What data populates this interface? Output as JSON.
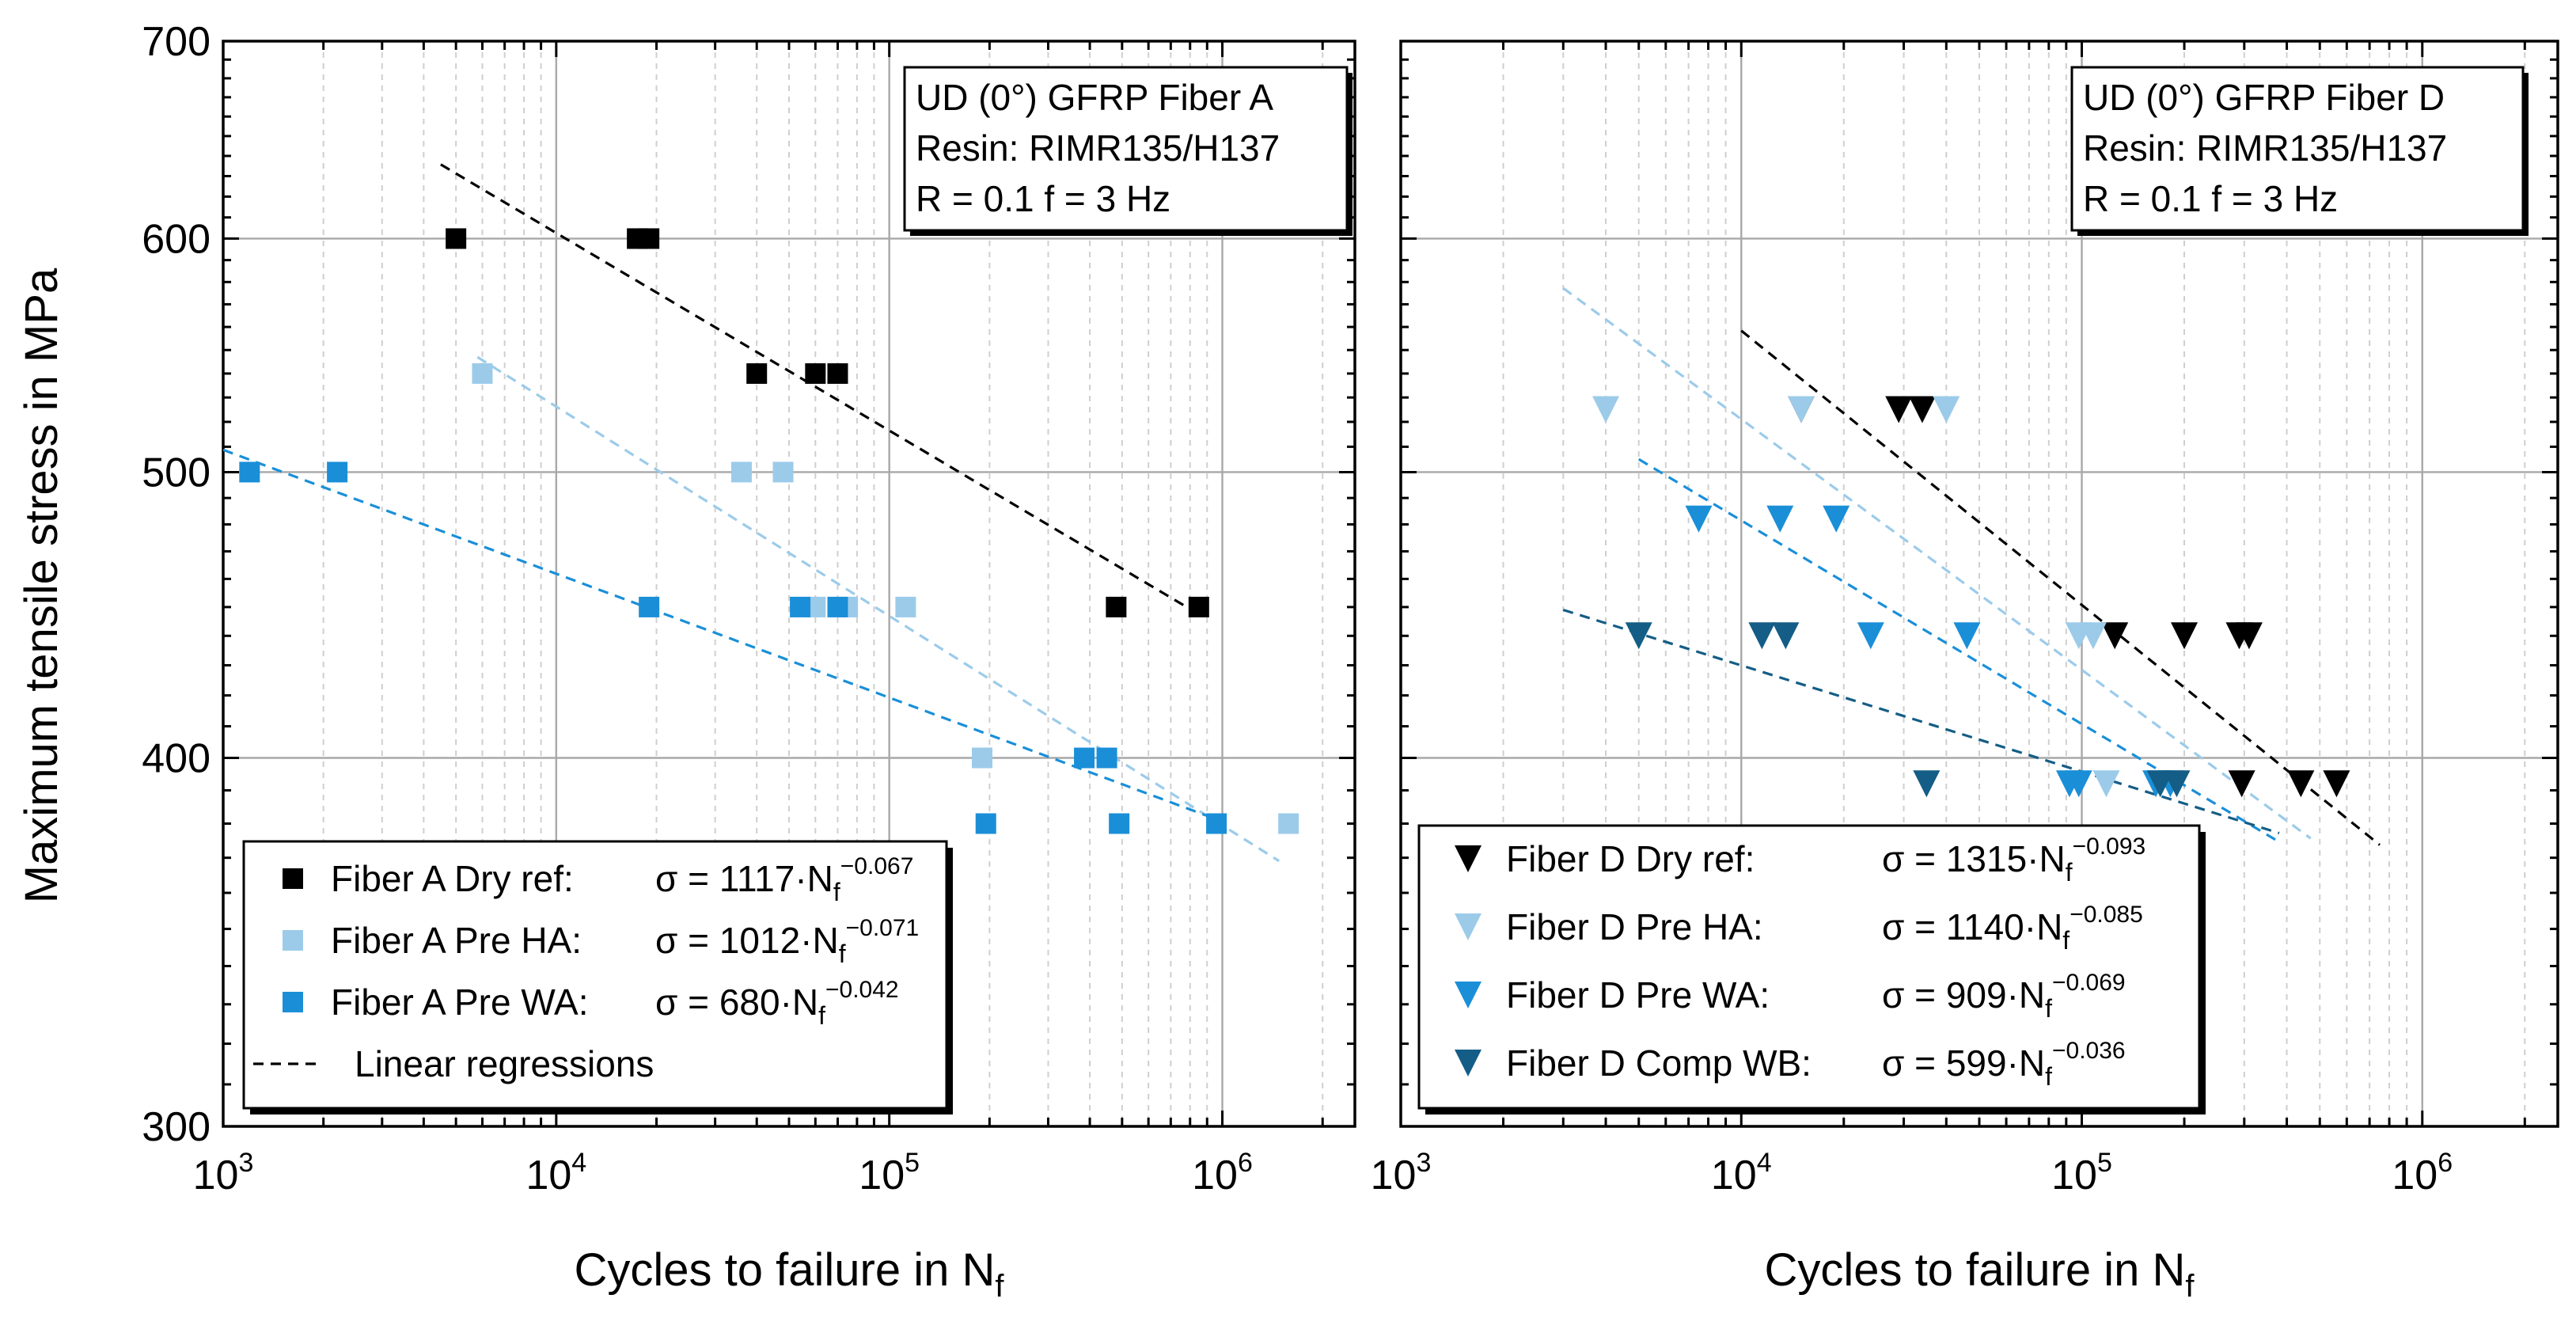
{
  "chart_data": {
    "type": "scatter",
    "shared_ylabel": "Maximum tensile stress in MPa",
    "panels": [
      {
        "xlabel": "Cycles to failure in N",
        "xlabel_sub": "f",
        "xscale": "log",
        "yscale": "log",
        "xlim": [
          1000,
          2500000
        ],
        "ylim": [
          300,
          700
        ],
        "xticks": [
          {
            "base": "10",
            "exp": "3",
            "value": 1000
          },
          {
            "base": "10",
            "exp": "4",
            "value": 10000
          },
          {
            "base": "10",
            "exp": "5",
            "value": 100000
          },
          {
            "base": "10",
            "exp": "6",
            "value": 1000000
          }
        ],
        "yticks": [
          {
            "label": "300",
            "value": 300
          },
          {
            "label": "400",
            "value": 400
          },
          {
            "label": "500",
            "value": 500
          },
          {
            "label": "600",
            "value": 600
          },
          {
            "label": "700",
            "value": 700
          }
        ],
        "grid": true,
        "legend_position": "bottom-left",
        "annotation": [
          "UD (0°) GFRP Fiber A",
          "Resin: RIMR135/H137",
          "R = 0.1    f = 3 Hz"
        ],
        "series": [
          {
            "name": "Fiber A Dry ref:",
            "marker": "square",
            "color": "#000000",
            "equation": {
              "lhs": "σ = ",
              "coef": "1117",
              "exp": "−0.067"
            },
            "points": [
              [
                5000,
                600
              ],
              [
                17500,
                600
              ],
              [
                19000,
                600
              ],
              [
                40000,
                540
              ],
              [
                60000,
                540
              ],
              [
                70000,
                540
              ],
              [
                480000,
                450
              ],
              [
                850000,
                450
              ]
            ],
            "fit": {
              "a": 1117,
              "b": -0.067,
              "x_range": [
                4500,
                850000
              ]
            }
          },
          {
            "name": "Fiber A Pre HA:",
            "marker": "square",
            "color": "#9ccbea",
            "equation": {
              "lhs": "σ = ",
              "coef": "1012",
              "exp": "−0.071"
            },
            "points": [
              [
                6000,
                540
              ],
              [
                36000,
                500
              ],
              [
                48000,
                500
              ],
              [
                60000,
                450
              ],
              [
                75000,
                450
              ],
              [
                112000,
                450
              ],
              [
                190000,
                400
              ],
              [
                1580000,
                380
              ]
            ],
            "fit": {
              "a": 1012,
              "b": -0.071,
              "x_range": [
                5800,
                1480000
              ]
            }
          },
          {
            "name": "Fiber A Pre WA:",
            "marker": "square",
            "color": "#1a8fd8",
            "equation": {
              "lhs": "σ =   ",
              "coef": "680",
              "exp": "−0.042"
            },
            "points": [
              [
                1200,
                500
              ],
              [
                2200,
                500
              ],
              [
                19000,
                450
              ],
              [
                54000,
                450
              ],
              [
                70000,
                450
              ],
              [
                195000,
                380
              ],
              [
                385000,
                400
              ],
              [
                450000,
                400
              ],
              [
                490000,
                380
              ],
              [
                960000,
                380
              ]
            ],
            "fit": {
              "a": 680,
              "b": -0.042,
              "x_range": [
                1000,
                990000
              ]
            }
          }
        ],
        "regression_legend": "Linear regressions"
      },
      {
        "xlabel": "Cycles to failure in N",
        "xlabel_sub": "f",
        "xscale": "log",
        "yscale": "log",
        "xlim": [
          1000,
          2500000
        ],
        "ylim": [
          300,
          700
        ],
        "xticks": [
          {
            "base": "10",
            "exp": "3",
            "value": 1000
          },
          {
            "base": "10",
            "exp": "4",
            "value": 10000
          },
          {
            "base": "10",
            "exp": "5",
            "value": 100000
          },
          {
            "base": "10",
            "exp": "6",
            "value": 1000000
          }
        ],
        "grid": true,
        "legend_position": "bottom-left",
        "annotation": [
          "UD (0°) GFRP Fiber D",
          "Resin: RIMR135/H137",
          "R = 0.1    f = 3 Hz"
        ],
        "series": [
          {
            "name": "Fiber D Dry ref:",
            "marker": "triangle-down",
            "color": "#000000",
            "equation": {
              "lhs": "σ = ",
              "coef": "1315",
              "exp": "−0.093"
            },
            "points": [
              [
                15000,
                525
              ],
              [
                29000,
                525
              ],
              [
                34000,
                525
              ],
              [
                125000,
                440
              ],
              [
                200000,
                440
              ],
              [
                290000,
                440
              ],
              [
                310000,
                440
              ],
              [
                295000,
                392
              ],
              [
                440000,
                392
              ],
              [
                560000,
                392
              ]
            ],
            "fit": {
              "a": 1315,
              "b": -0.093,
              "x_range": [
                10000,
                750000
              ]
            }
          },
          {
            "name": "Fiber D Pre HA:",
            "marker": "triangle-down",
            "color": "#9ccbea",
            "equation": {
              "lhs": "σ = ",
              "coef": "1140",
              "exp": "−0.085"
            },
            "points": [
              [
                4000,
                525
              ],
              [
                15000,
                525
              ],
              [
                40000,
                525
              ],
              [
                98000,
                440
              ],
              [
                108000,
                440
              ],
              [
                118000,
                392
              ]
            ],
            "fit": {
              "a": 1140,
              "b": -0.085,
              "x_range": [
                3000,
                470000
              ]
            }
          },
          {
            "name": "Fiber D Pre WA:",
            "marker": "triangle-down",
            "color": "#1a8fd8",
            "equation": {
              "lhs": "σ =   ",
              "coef": "909",
              "exp": "−0.069"
            },
            "points": [
              [
                7500,
                482
              ],
              [
                13000,
                482
              ],
              [
                19000,
                482
              ],
              [
                24000,
                440
              ],
              [
                46000,
                440
              ],
              [
                92000,
                392
              ],
              [
                98000,
                392
              ],
              [
                165000,
                392
              ],
              [
                182000,
                392
              ]
            ],
            "fit": {
              "a": 909,
              "b": -0.069,
              "x_range": [
                5000,
                380000
              ]
            }
          },
          {
            "name": "Fiber D Comp WB:",
            "marker": "triangle-down",
            "color": "#145d86",
            "equation": {
              "lhs": "σ = ",
              "coef": "599",
              "exp": "−0.036"
            },
            "points": [
              [
                5000,
                440
              ],
              [
                11500,
                440
              ],
              [
                13500,
                440
              ],
              [
                35000,
                392
              ],
              [
                170000,
                392
              ],
              [
                190000,
                392
              ]
            ],
            "fit": {
              "a": 599,
              "b": -0.036,
              "x_range": [
                3000,
                380000
              ]
            }
          }
        ]
      }
    ]
  }
}
